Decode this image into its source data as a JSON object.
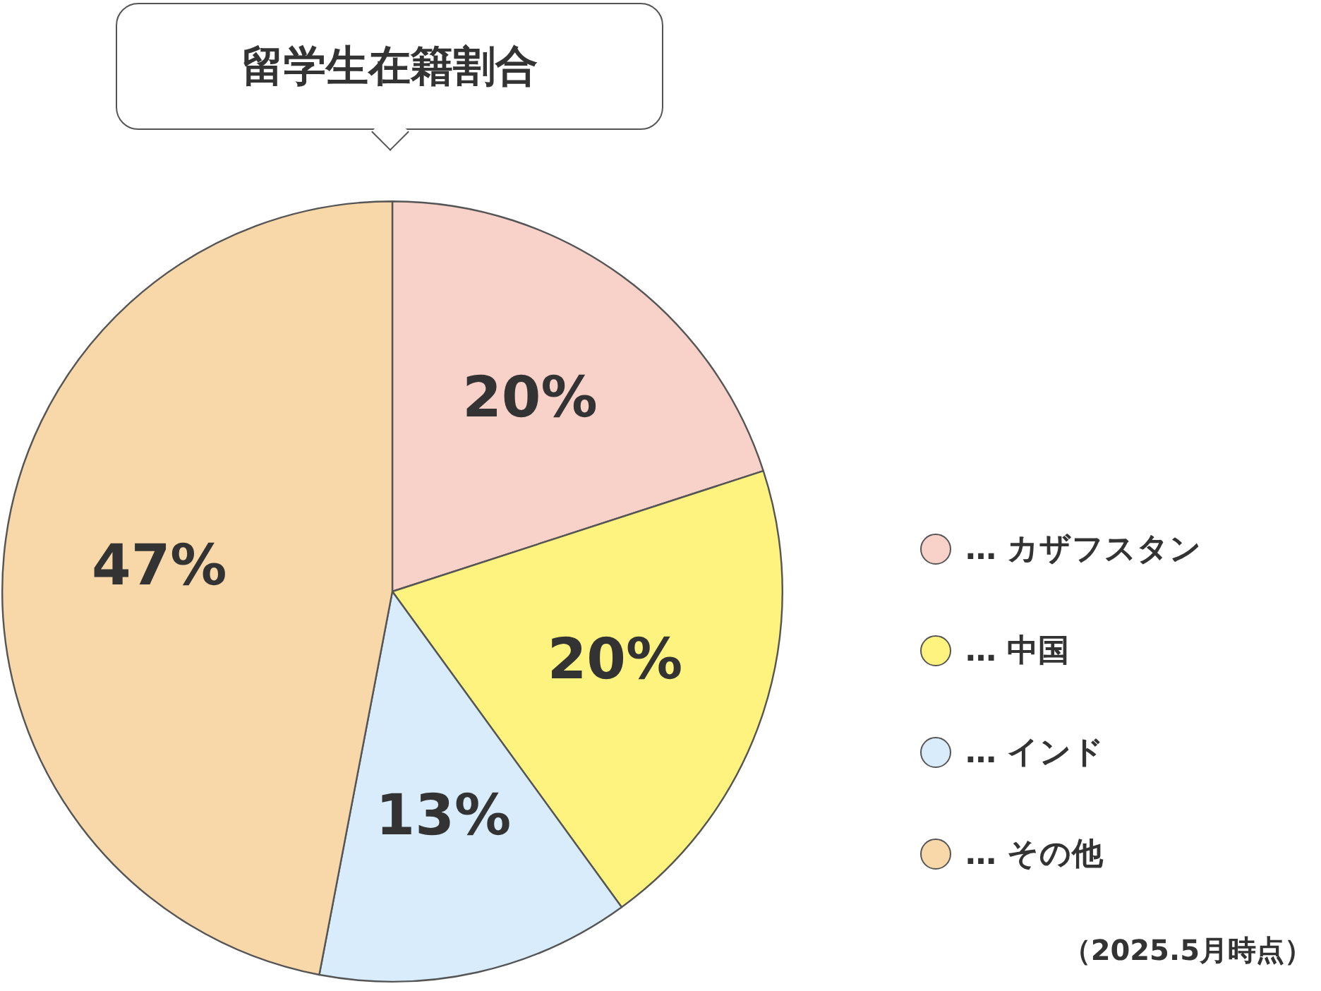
{
  "chart_data": {
    "type": "pie",
    "title": "留学生在籍割合",
    "categories": [
      "… カザフスタン",
      "… 中国",
      "… インド",
      "… その他"
    ],
    "values": [
      20,
      20,
      13,
      47
    ],
    "colors": [
      "#f8d1c9",
      "#fff37f",
      "#d8ecfb",
      "#f8d7a9"
    ],
    "value_labels": [
      "20%",
      "20%",
      "13%",
      "47%"
    ],
    "legend": "right",
    "annotations": [
      "（2025.5月時点）"
    ]
  }
}
